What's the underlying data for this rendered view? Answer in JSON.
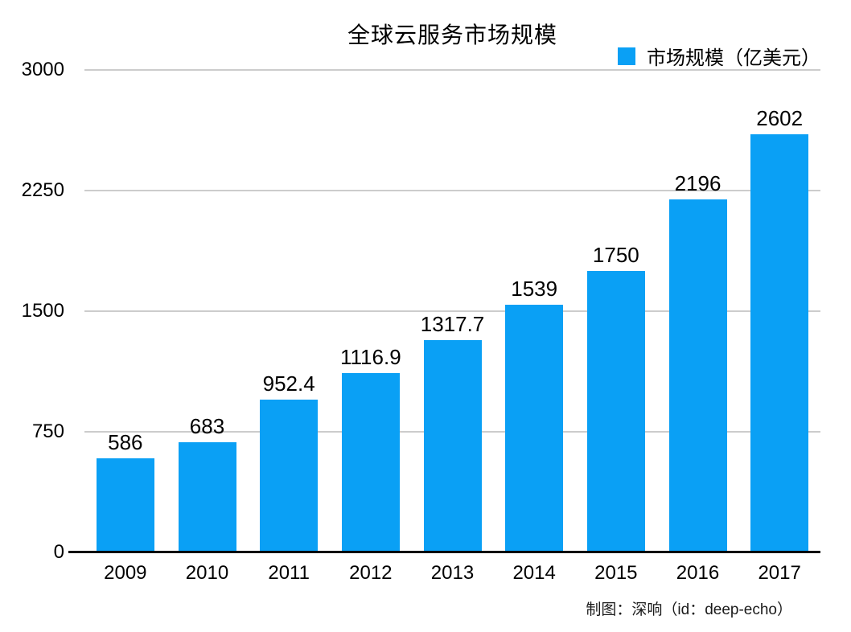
{
  "chart_data": {
    "type": "bar",
    "title": "全球云服务市场规模",
    "legend": "市场规模（亿美元）",
    "legend_position": "top-right",
    "categories": [
      "2009",
      "2010",
      "2011",
      "2012",
      "2013",
      "2014",
      "2015",
      "2016",
      "2017"
    ],
    "values": [
      586,
      683,
      952.4,
      1116.9,
      1317.7,
      1539,
      1750,
      2196,
      2602
    ],
    "value_labels": [
      "586",
      "683",
      "952.4",
      "1116.9",
      "1317.7",
      "1539",
      "1750",
      "2196",
      "2602"
    ],
    "y_ticks": [
      0,
      750,
      1500,
      2250,
      3000
    ],
    "ylim": [
      0,
      3000
    ],
    "xlabel": "",
    "ylabel": "",
    "grid": true,
    "colors": {
      "bar": "#0AA0F5",
      "gridline": "#cccccc",
      "axis": "#000000",
      "text": "#000000"
    }
  },
  "footer": {
    "credit": "制图：深响（id：deep-echo）"
  }
}
